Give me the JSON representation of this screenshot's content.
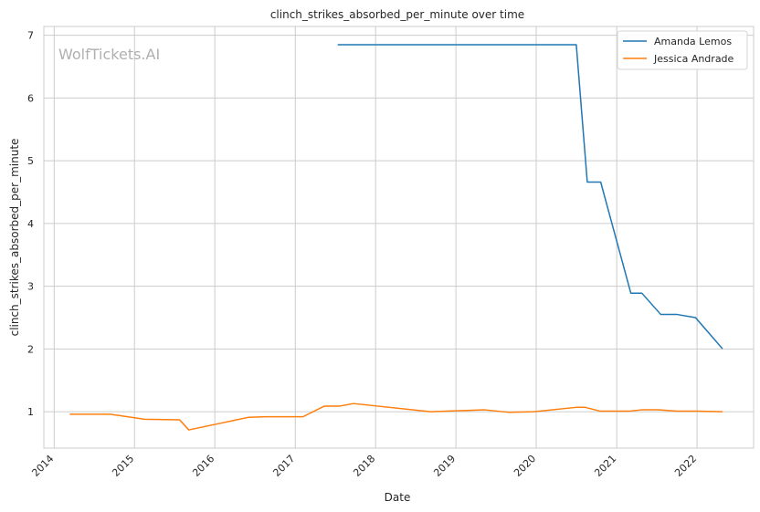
{
  "chart_data": {
    "type": "line",
    "title": "clinch_strikes_absorbed_per_minute over time",
    "xlabel": "Date",
    "ylabel": "clinch_strikes_absorbed_per_minute",
    "watermark": "WolfTickets.AI",
    "x_ticks": [
      "2014",
      "2015",
      "2016",
      "2017",
      "2018",
      "2019",
      "2020",
      "2021",
      "2022"
    ],
    "y_ticks": [
      1,
      2,
      3,
      4,
      5,
      6,
      7
    ],
    "xlim": [
      "2013-11-15",
      "2022-09-15"
    ],
    "ylim": [
      0.42,
      7.14
    ],
    "grid": true,
    "legend_position": "top-right",
    "series": [
      {
        "name": "Amanda Lemos",
        "color": "#1f77b4",
        "points": [
          [
            "2017-07-15",
            6.85
          ],
          [
            "2020-07-01",
            6.85
          ],
          [
            "2020-08-20",
            4.66
          ],
          [
            "2020-10-20",
            4.66
          ],
          [
            "2021-03-06",
            2.89
          ],
          [
            "2021-04-25",
            2.89
          ],
          [
            "2021-07-20",
            2.55
          ],
          [
            "2021-10-02",
            2.55
          ],
          [
            "2021-12-25",
            2.5
          ],
          [
            "2022-04-25",
            2.01
          ]
        ]
      },
      {
        "name": "Jessica Andrade",
        "color": "#ff7f0e",
        "points": [
          [
            "2014-03-15",
            0.96
          ],
          [
            "2014-09-13",
            0.96
          ],
          [
            "2015-02-15",
            0.88
          ],
          [
            "2015-07-25",
            0.87
          ],
          [
            "2015-09-05",
            0.71
          ],
          [
            "2016-06-01",
            0.91
          ],
          [
            "2016-08-20",
            0.92
          ],
          [
            "2017-02-05",
            0.92
          ],
          [
            "2017-05-13",
            1.09
          ],
          [
            "2017-07-22",
            1.09
          ],
          [
            "2017-09-23",
            1.13
          ],
          [
            "2018-09-08",
            1.0
          ],
          [
            "2019-05-11",
            1.03
          ],
          [
            "2019-09-01",
            0.99
          ],
          [
            "2019-12-21",
            1.0
          ],
          [
            "2020-07-01",
            1.07
          ],
          [
            "2020-08-10",
            1.07
          ],
          [
            "2020-10-17",
            1.01
          ],
          [
            "2021-03-01",
            1.01
          ],
          [
            "2021-04-24",
            1.03
          ],
          [
            "2021-07-10",
            1.03
          ],
          [
            "2021-10-01",
            1.01
          ],
          [
            "2022-01-01",
            1.01
          ],
          [
            "2022-04-25",
            1.0
          ]
        ]
      }
    ]
  }
}
